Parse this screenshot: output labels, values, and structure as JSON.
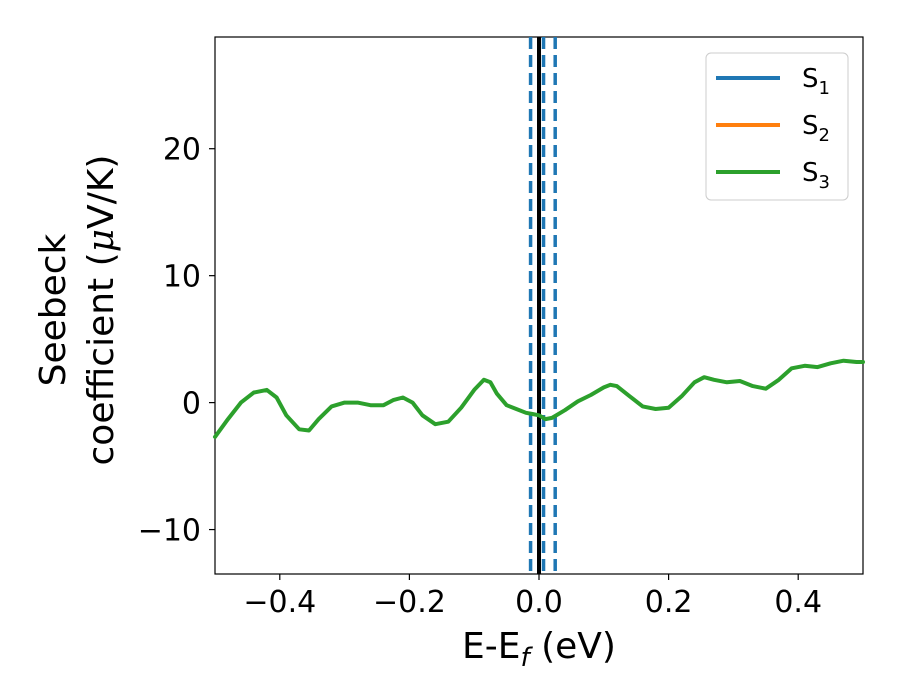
{
  "chart_data": {
    "type": "line",
    "xlabel": "E-E",
    "xlabel_sub": "f",
    "xlabel_unit": " (eV)",
    "ylabel_line1": "Seebeck",
    "ylabel_line2_prefix": "coefficient  (",
    "ylabel_mu": "μ",
    "ylabel_line2_suffix": "V/K)",
    "xlim": [
      -0.5,
      0.5
    ],
    "ylim": [
      -13.5,
      28.8
    ],
    "xticks": [
      -0.4,
      -0.2,
      0.0,
      0.2,
      0.4
    ],
    "xtick_labels": [
      "−0.4",
      "−0.2",
      "0.0",
      "0.2",
      "0.4"
    ],
    "yticks": [
      -10,
      0,
      10,
      20
    ],
    "ytick_labels": [
      "−10",
      "0",
      "10",
      "20"
    ],
    "grid": false,
    "legend_position": "top-right",
    "series": [
      {
        "name": "S",
        "sub": "1",
        "color": "#1f77b4",
        "visible": false
      },
      {
        "name": "S",
        "sub": "2",
        "color": "#ff7f0e",
        "visible": false
      },
      {
        "name": "S",
        "sub": "3",
        "color": "#2ca02c",
        "visible": true
      }
    ],
    "x": [
      -0.5,
      -0.48,
      -0.46,
      -0.44,
      -0.42,
      -0.405,
      -0.39,
      -0.37,
      -0.355,
      -0.34,
      -0.32,
      -0.3,
      -0.28,
      -0.26,
      -0.24,
      -0.225,
      -0.21,
      -0.195,
      -0.18,
      -0.16,
      -0.14,
      -0.12,
      -0.1,
      -0.085,
      -0.075,
      -0.065,
      -0.05,
      -0.035,
      -0.02,
      -0.01,
      0.0,
      0.01,
      0.02,
      0.04,
      0.06,
      0.08,
      0.1,
      0.11,
      0.12,
      0.14,
      0.16,
      0.18,
      0.2,
      0.22,
      0.24,
      0.255,
      0.27,
      0.29,
      0.31,
      0.33,
      0.35,
      0.37,
      0.39,
      0.41,
      0.43,
      0.45,
      0.47,
      0.49,
      0.5
    ],
    "y": [
      -2.7,
      -1.3,
      0.0,
      0.8,
      1.0,
      0.4,
      -1.0,
      -2.1,
      -2.2,
      -1.3,
      -0.3,
      0.0,
      0.0,
      -0.2,
      -0.2,
      0.2,
      0.4,
      0.0,
      -1.0,
      -1.7,
      -1.5,
      -0.4,
      1.0,
      1.8,
      1.6,
      0.7,
      -0.2,
      -0.5,
      -0.8,
      -0.9,
      -1.0,
      -1.3,
      -1.2,
      -0.6,
      0.1,
      0.6,
      1.2,
      1.4,
      1.3,
      0.5,
      -0.3,
      -0.5,
      -0.4,
      0.5,
      1.6,
      2.0,
      1.8,
      1.6,
      1.7,
      1.3,
      1.1,
      1.8,
      2.7,
      2.9,
      2.8,
      3.1,
      3.3,
      3.2,
      3.2
    ],
    "vlines": [
      {
        "x": 0.0,
        "color": "#000000",
        "style": "solid"
      },
      {
        "x": -0.013,
        "color": "#1f77b4",
        "style": "dashed"
      },
      {
        "x": 0.007,
        "color": "#1f77b4",
        "style": "dashed"
      },
      {
        "x": 0.025,
        "color": "#1f77b4",
        "style": "dashed"
      }
    ]
  }
}
